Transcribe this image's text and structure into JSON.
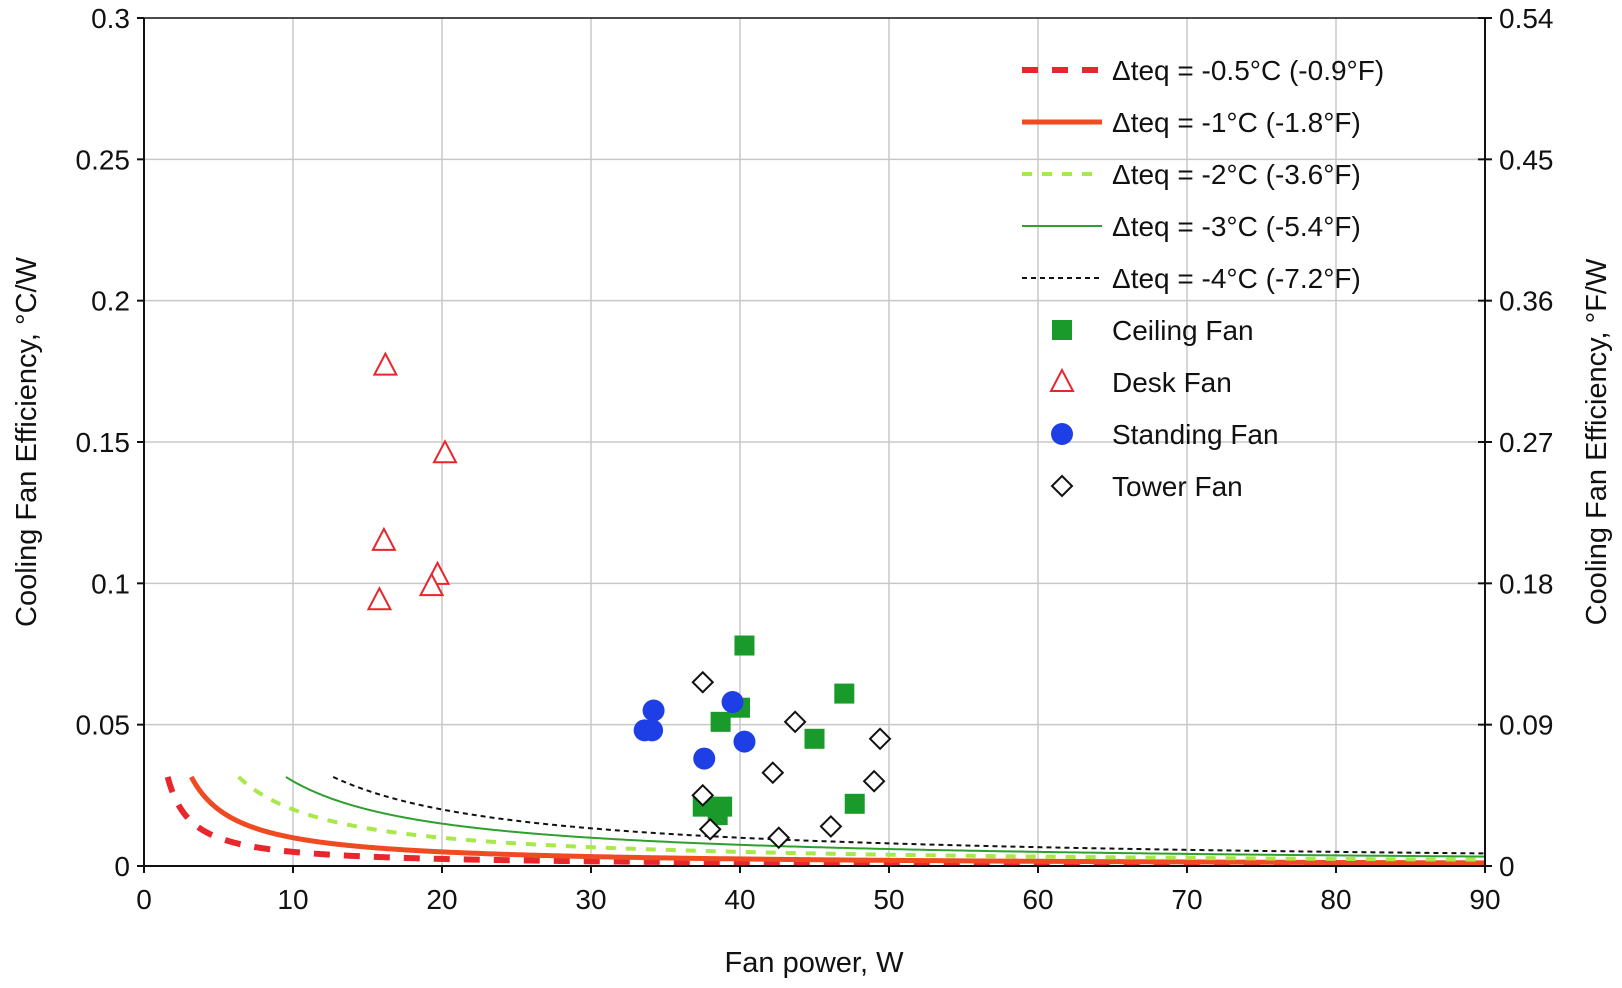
{
  "chart_data": {
    "type": "scatter",
    "xlabel": "Fan power, W",
    "ylabel": "Cooling Fan Efficiency, °C/W",
    "y2label": "Cooling Fan Efficiency, °F/W",
    "xlim": [
      0,
      90
    ],
    "ylim": [
      0,
      0.3
    ],
    "y2lim": [
      0,
      0.54
    ],
    "grid": true,
    "legend_position": "top-right",
    "x_ticks": [
      "0",
      "10",
      "20",
      "30",
      "40",
      "50",
      "60",
      "70",
      "80",
      "90"
    ],
    "y_ticks": [
      "0",
      "0.05",
      "0.1",
      "0.15",
      "0.2",
      "0.25",
      "0.3"
    ],
    "y2_ticks": [
      "0",
      "0.09",
      "0.18",
      "0.27",
      "0.36",
      "0.45",
      "0.54"
    ],
    "curves": [
      {
        "name": "Δteq = -0.5°C (-0.9°F)",
        "k": 0.5,
        "color": "#e8262b",
        "style": "dashed-heavy"
      },
      {
        "name": "Δteq = -1°C (-1.8°F)",
        "k": 1,
        "color": "#f04a22",
        "style": "solid-heavy"
      },
      {
        "name": "Δteq = -2°C (-3.6°F)",
        "k": 2,
        "color": "#a8e84a",
        "style": "dashed"
      },
      {
        "name": "Δteq = -3°C (-5.4°F)",
        "k": 3,
        "color": "#2ea02e",
        "style": "solid-thin"
      },
      {
        "name": "Δteq = -4°C (-7.2°F)",
        "k": 4,
        "color": "#111111",
        "style": "dotted"
      }
    ],
    "series": [
      {
        "name": "Ceiling Fan",
        "marker": "square",
        "color": "#1a9a2a",
        "points": [
          [
            40.3,
            0.078
          ],
          [
            47,
            0.061
          ],
          [
            38.7,
            0.051
          ],
          [
            40,
            0.056
          ],
          [
            45,
            0.045
          ],
          [
            37.5,
            0.021
          ],
          [
            38.8,
            0.021
          ],
          [
            38.5,
            0.018
          ],
          [
            47.7,
            0.022
          ]
        ]
      },
      {
        "name": "Desk Fan",
        "marker": "triangle",
        "color": "#e8262b",
        "points": [
          [
            16.2,
            0.177
          ],
          [
            20.2,
            0.146
          ],
          [
            16.1,
            0.115
          ],
          [
            19.7,
            0.103
          ],
          [
            19.3,
            0.099
          ],
          [
            15.8,
            0.094
          ]
        ]
      },
      {
        "name": "Standing Fan",
        "marker": "circle",
        "color": "#1f3fe6",
        "points": [
          [
            34.2,
            0.055
          ],
          [
            33.6,
            0.048
          ],
          [
            34.1,
            0.048
          ],
          [
            39.5,
            0.058
          ],
          [
            40.3,
            0.044
          ],
          [
            37.6,
            0.038
          ]
        ]
      },
      {
        "name": "Tower Fan",
        "marker": "diamond",
        "color": "#111111",
        "points": [
          [
            37.5,
            0.065
          ],
          [
            43.7,
            0.051
          ],
          [
            49.4,
            0.045
          ],
          [
            42.2,
            0.033
          ],
          [
            49,
            0.03
          ],
          [
            37.5,
            0.025
          ],
          [
            38,
            0.013
          ],
          [
            42.6,
            0.01
          ],
          [
            46.1,
            0.014
          ]
        ]
      }
    ]
  }
}
